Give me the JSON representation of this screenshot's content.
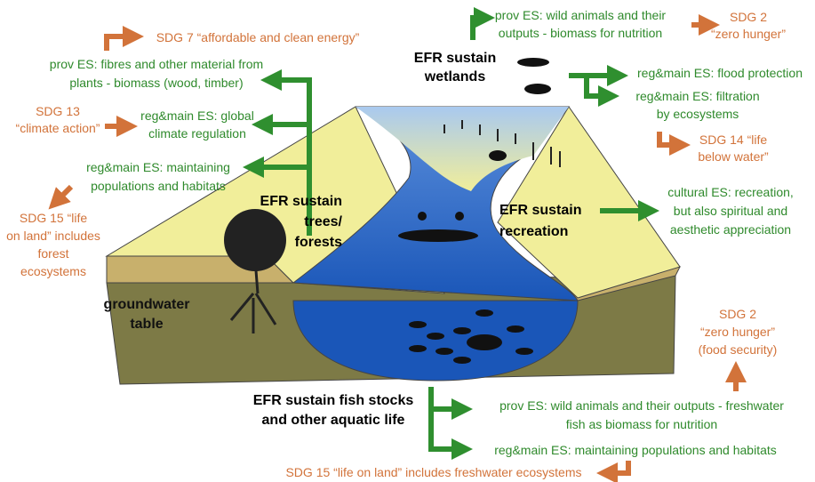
{
  "sdg_goals": [
    {
      "lines": [
        "SDG 7 “affordable and clean energy”"
      ]
    },
    {
      "lines": [
        "SDG 13",
        "“climate action”"
      ]
    },
    {
      "lines": [
        "SDG 15 “life",
        "on land” includes",
        "forest",
        "ecosystems"
      ]
    },
    {
      "lines": [
        "SDG 2",
        "“zero hunger”"
      ]
    },
    {
      "lines": [
        "SDG 14 “life",
        "below water”"
      ]
    },
    {
      "lines": [
        "SDG 2",
        "“zero hunger”",
        "(food security)"
      ]
    },
    {
      "lines": [
        "SDG 15 “life on land” includes freshwater ecosystems"
      ]
    }
  ],
  "ecosystem_services": [
    {
      "lines": [
        "prov ES: fibres and other material from",
        "plants - biomass (wood, timber)"
      ]
    },
    {
      "lines": [
        "reg&main ES: global",
        "climate regulation"
      ]
    },
    {
      "lines": [
        "reg&main ES: maintaining",
        "populations and habitats"
      ]
    },
    {
      "lines": [
        "prov ES: wild animals and their",
        "outputs - biomass for nutrition"
      ]
    },
    {
      "lines": [
        "reg&main ES: flood protection"
      ]
    },
    {
      "lines": [
        "reg&main ES: filtration",
        "by ecosystems"
      ]
    },
    {
      "lines": [
        "cultural ES: recreation,",
        "but also spiritual and",
        "aesthetic appreciation"
      ]
    },
    {
      "lines": [
        "prov ES: wild animals and their outputs - freshwater",
        "fish as biomass for nutrition"
      ]
    },
    {
      "lines": [
        "reg&main ES: maintaining populations and habitats"
      ]
    }
  ],
  "efr_labels": [
    {
      "lines": [
        "EFR sustain",
        "trees/",
        "forests"
      ]
    },
    {
      "lines": [
        "EFR sustain",
        "wetlands"
      ]
    },
    {
      "lines": [
        "EFR sustain",
        "recreation"
      ]
    },
    {
      "lines": [
        "EFR sustain fish stocks",
        "and other aquatic life"
      ]
    }
  ],
  "groundwater": {
    "lines": [
      "groundwater",
      "table"
    ]
  }
}
